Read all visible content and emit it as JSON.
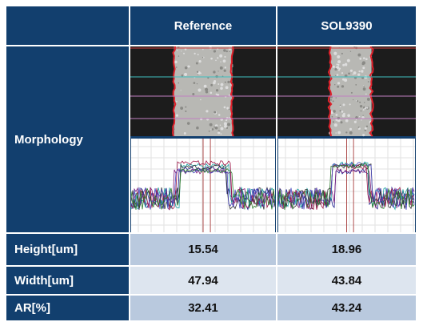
{
  "table": {
    "columns": [
      "Reference",
      "SOL9390"
    ],
    "morphology_label": "Morphology",
    "rows": [
      [
        "Height[um]",
        "15.54",
        "18.96"
      ],
      [
        "Width[um]",
        "47.94",
        "43.84"
      ],
      [
        "AR[%]",
        "32.41",
        "43.24"
      ]
    ]
  }
}
